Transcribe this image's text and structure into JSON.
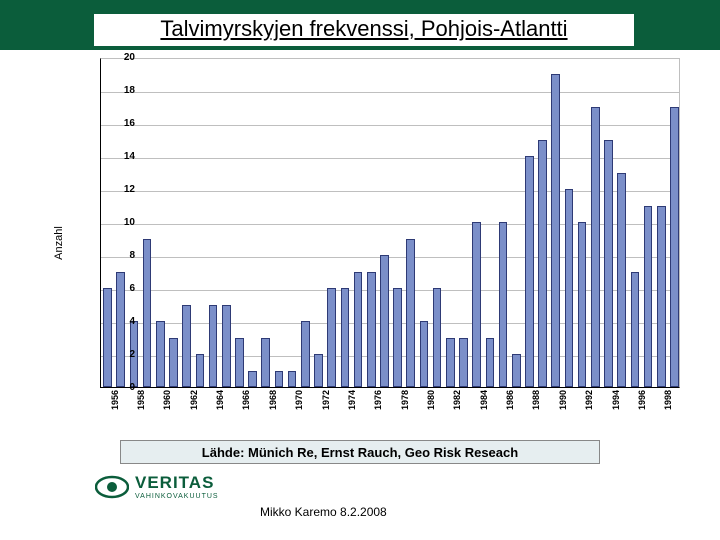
{
  "title": "Talvimyrskyjen frekvenssi, Pohjois-Atlantti",
  "chart": {
    "type": "bar",
    "y_label": "Anzahl",
    "ylim": [
      0,
      20
    ],
    "ytick_step": 2,
    "yticks": [
      0,
      2,
      4,
      6,
      8,
      10,
      12,
      14,
      16,
      18,
      20
    ],
    "x_years": [
      1956,
      1957,
      1958,
      1959,
      1960,
      1961,
      1962,
      1963,
      1964,
      1965,
      1966,
      1967,
      1968,
      1969,
      1970,
      1971,
      1972,
      1973,
      1974,
      1975,
      1976,
      1977,
      1978,
      1979,
      1980,
      1981,
      1982,
      1983,
      1984,
      1985,
      1986,
      1987,
      1988,
      1989,
      1990,
      1991,
      1992,
      1993,
      1994,
      1995,
      1996,
      1997,
      1998,
      1999
    ],
    "x_label_years": [
      1956,
      1958,
      1960,
      1962,
      1964,
      1966,
      1968,
      1970,
      1972,
      1974,
      1976,
      1978,
      1980,
      1982,
      1984,
      1986,
      1988,
      1990,
      1992,
      1994,
      1996,
      1998
    ],
    "values": [
      6,
      7,
      4,
      9,
      4,
      3,
      5,
      2,
      5,
      5,
      3,
      1,
      3,
      1,
      1,
      4,
      2,
      6,
      6,
      7,
      7,
      8,
      6,
      9,
      4,
      6,
      3,
      3,
      10,
      3,
      10,
      2,
      14,
      15,
      19,
      12,
      10,
      17,
      15,
      13,
      7,
      11,
      11,
      17
    ],
    "bar_color": "#7b8fc9",
    "bar_border": "#2e3a75",
    "grid_color": "#bfbfbf",
    "axis_color": "#000000",
    "background_color": "#ffffff",
    "bar_gap_ratio": 0.35,
    "label_fontsize": 11,
    "tick_fontsize": 10
  },
  "source": "Lähde: Münich Re, Ernst Rauch, Geo Risk Reseach",
  "logo": {
    "name": "VERITAS",
    "sub": "VAHINKOVAKUUTUS",
    "color": "#0b5d3b"
  },
  "footer": "Mikko Karemo 8.2.2008",
  "header_bg": "#0b5d3b",
  "source_box_bg": "#e6eef0",
  "source_box_border": "#888888"
}
